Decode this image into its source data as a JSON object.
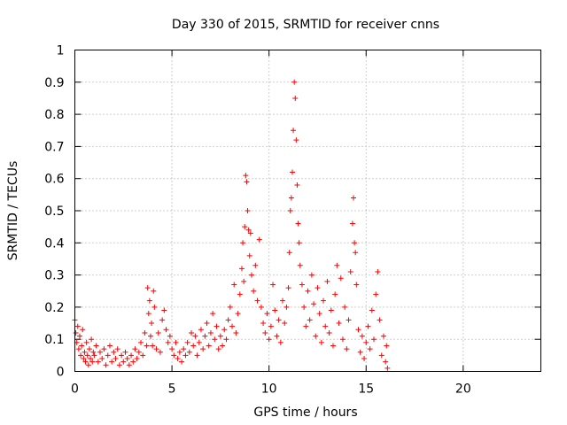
{
  "chart_data": {
    "type": "scatter",
    "title": "Day 330 of 2015, SRMTID for receiver cnns",
    "xlabel": "GPS time / hours",
    "ylabel": "SRMTID / TECUs",
    "xlim": [
      0,
      24
    ],
    "ylim": [
      0,
      1
    ],
    "xticks": [
      0,
      5,
      10,
      15,
      20
    ],
    "yticks": [
      0,
      0.1,
      0.2,
      0.3,
      0.4,
      0.5,
      0.6,
      0.7,
      0.8,
      0.9,
      1
    ],
    "xtick_labels": [
      "0",
      "5",
      "10",
      "15",
      "20"
    ],
    "ytick_labels": [
      "0",
      "0.1",
      "0.2",
      "0.3",
      "0.4",
      "0.5",
      "0.6",
      "0.7",
      "0.8",
      "0.9",
      "1"
    ],
    "grid": true,
    "marker": "+",
    "marker_color": "#ff0000",
    "series": [
      {
        "name": "SRMTID",
        "points": [
          [
            0.0,
            0.16
          ],
          [
            0.05,
            0.12
          ],
          [
            0.1,
            0.09
          ],
          [
            0.15,
            0.14
          ],
          [
            0.2,
            0.07
          ],
          [
            0.25,
            0.11
          ],
          [
            0.3,
            0.05
          ],
          [
            0.35,
            0.08
          ],
          [
            0.4,
            0.13
          ],
          [
            0.45,
            0.04
          ],
          [
            0.5,
            0.06
          ],
          [
            0.55,
            0.03
          ],
          [
            0.6,
            0.09
          ],
          [
            0.65,
            0.05
          ],
          [
            0.7,
            0.02
          ],
          [
            0.75,
            0.07
          ],
          [
            0.8,
            0.04
          ],
          [
            0.85,
            0.1
          ],
          [
            0.9,
            0.03
          ],
          [
            0.95,
            0.06
          ],
          [
            1.0,
            0.05
          ],
          [
            1.1,
            0.08
          ],
          [
            1.2,
            0.03
          ],
          [
            1.3,
            0.06
          ],
          [
            1.4,
            0.04
          ],
          [
            1.5,
            0.07
          ],
          [
            1.6,
            0.02
          ],
          [
            1.7,
            0.05
          ],
          [
            1.8,
            0.08
          ],
          [
            1.9,
            0.03
          ],
          [
            2.0,
            0.06
          ],
          [
            2.1,
            0.04
          ],
          [
            2.2,
            0.07
          ],
          [
            2.3,
            0.02
          ],
          [
            2.4,
            0.05
          ],
          [
            2.5,
            0.03
          ],
          [
            2.6,
            0.06
          ],
          [
            2.7,
            0.04
          ],
          [
            2.8,
            0.02
          ],
          [
            2.9,
            0.05
          ],
          [
            3.0,
            0.03
          ],
          [
            3.1,
            0.07
          ],
          [
            3.2,
            0.04
          ],
          [
            3.3,
            0.06
          ],
          [
            3.4,
            0.09
          ],
          [
            3.5,
            0.05
          ],
          [
            3.6,
            0.12
          ],
          [
            3.7,
            0.08
          ],
          [
            3.75,
            0.26
          ],
          [
            3.8,
            0.18
          ],
          [
            3.85,
            0.22
          ],
          [
            3.9,
            0.11
          ],
          [
            3.95,
            0.15
          ],
          [
            4.0,
            0.08
          ],
          [
            4.05,
            0.25
          ],
          [
            4.1,
            0.2
          ],
          [
            4.2,
            0.07
          ],
          [
            4.3,
            0.12
          ],
          [
            4.4,
            0.06
          ],
          [
            4.5,
            0.16
          ],
          [
            4.6,
            0.19
          ],
          [
            4.7,
            0.13
          ],
          [
            4.8,
            0.09
          ],
          [
            4.9,
            0.11
          ],
          [
            5.0,
            0.07
          ],
          [
            5.1,
            0.05
          ],
          [
            5.2,
            0.09
          ],
          [
            5.3,
            0.04
          ],
          [
            5.4,
            0.06
          ],
          [
            5.5,
            0.03
          ],
          [
            5.6,
            0.07
          ],
          [
            5.7,
            0.05
          ],
          [
            5.8,
            0.09
          ],
          [
            5.9,
            0.06
          ],
          [
            6.0,
            0.12
          ],
          [
            6.1,
            0.08
          ],
          [
            6.2,
            0.11
          ],
          [
            6.3,
            0.05
          ],
          [
            6.4,
            0.09
          ],
          [
            6.5,
            0.13
          ],
          [
            6.6,
            0.07
          ],
          [
            6.7,
            0.11
          ],
          [
            6.8,
            0.15
          ],
          [
            6.9,
            0.08
          ],
          [
            7.0,
            0.12
          ],
          [
            7.1,
            0.18
          ],
          [
            7.2,
            0.1
          ],
          [
            7.3,
            0.14
          ],
          [
            7.4,
            0.07
          ],
          [
            7.5,
            0.11
          ],
          [
            7.6,
            0.08
          ],
          [
            7.7,
            0.13
          ],
          [
            7.8,
            0.1
          ],
          [
            7.9,
            0.16
          ],
          [
            8.0,
            0.2
          ],
          [
            8.1,
            0.14
          ],
          [
            8.2,
            0.27
          ],
          [
            8.3,
            0.12
          ],
          [
            8.4,
            0.18
          ],
          [
            8.5,
            0.24
          ],
          [
            8.6,
            0.32
          ],
          [
            8.65,
            0.4
          ],
          [
            8.7,
            0.28
          ],
          [
            8.75,
            0.45
          ],
          [
            8.8,
            0.61
          ],
          [
            8.85,
            0.59
          ],
          [
            8.9,
            0.5
          ],
          [
            8.95,
            0.44
          ],
          [
            9.0,
            0.36
          ],
          [
            9.05,
            0.43
          ],
          [
            9.1,
            0.3
          ],
          [
            9.2,
            0.25
          ],
          [
            9.3,
            0.33
          ],
          [
            9.4,
            0.22
          ],
          [
            9.5,
            0.41
          ],
          [
            9.6,
            0.2
          ],
          [
            9.7,
            0.15
          ],
          [
            9.8,
            0.12
          ],
          [
            9.9,
            0.18
          ],
          [
            10.0,
            0.1
          ],
          [
            10.1,
            0.14
          ],
          [
            10.2,
            0.27
          ],
          [
            10.3,
            0.19
          ],
          [
            10.4,
            0.11
          ],
          [
            10.5,
            0.16
          ],
          [
            10.6,
            0.09
          ],
          [
            10.7,
            0.22
          ],
          [
            10.8,
            0.15
          ],
          [
            10.9,
            0.2
          ],
          [
            11.0,
            0.26
          ],
          [
            11.05,
            0.37
          ],
          [
            11.1,
            0.5
          ],
          [
            11.15,
            0.54
          ],
          [
            11.2,
            0.62
          ],
          [
            11.25,
            0.75
          ],
          [
            11.3,
            0.9
          ],
          [
            11.35,
            0.85
          ],
          [
            11.4,
            0.72
          ],
          [
            11.45,
            0.58
          ],
          [
            11.5,
            0.46
          ],
          [
            11.55,
            0.4
          ],
          [
            11.6,
            0.33
          ],
          [
            11.7,
            0.27
          ],
          [
            11.8,
            0.2
          ],
          [
            11.9,
            0.14
          ],
          [
            12.0,
            0.25
          ],
          [
            12.1,
            0.16
          ],
          [
            12.2,
            0.3
          ],
          [
            12.3,
            0.21
          ],
          [
            12.4,
            0.11
          ],
          [
            12.5,
            0.26
          ],
          [
            12.6,
            0.18
          ],
          [
            12.7,
            0.09
          ],
          [
            12.8,
            0.22
          ],
          [
            12.9,
            0.14
          ],
          [
            13.0,
            0.28
          ],
          [
            13.1,
            0.12
          ],
          [
            13.2,
            0.19
          ],
          [
            13.3,
            0.08
          ],
          [
            13.4,
            0.24
          ],
          [
            13.5,
            0.33
          ],
          [
            13.6,
            0.15
          ],
          [
            13.7,
            0.29
          ],
          [
            13.8,
            0.1
          ],
          [
            13.9,
            0.2
          ],
          [
            14.0,
            0.07
          ],
          [
            14.1,
            0.16
          ],
          [
            14.2,
            0.31
          ],
          [
            14.3,
            0.46
          ],
          [
            14.35,
            0.54
          ],
          [
            14.4,
            0.4
          ],
          [
            14.45,
            0.37
          ],
          [
            14.5,
            0.27
          ],
          [
            14.6,
            0.13
          ],
          [
            14.7,
            0.06
          ],
          [
            14.8,
            0.11
          ],
          [
            14.9,
            0.04
          ],
          [
            15.0,
            0.09
          ],
          [
            15.1,
            0.14
          ],
          [
            15.2,
            0.07
          ],
          [
            15.3,
            0.19
          ],
          [
            15.4,
            0.1
          ],
          [
            15.5,
            0.24
          ],
          [
            15.6,
            0.31
          ],
          [
            15.7,
            0.16
          ],
          [
            15.8,
            0.05
          ],
          [
            15.9,
            0.11
          ],
          [
            16.0,
            0.03
          ],
          [
            16.05,
            0.08
          ],
          [
            16.1,
            0.01
          ]
        ]
      }
    ]
  }
}
